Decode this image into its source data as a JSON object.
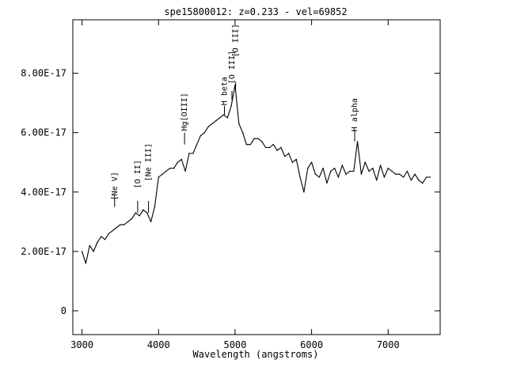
{
  "chart_data": {
    "type": "line",
    "title": "spe15800012: z=0.233 - vel=69852",
    "xlabel": "Wavelength (angstroms)",
    "ylabel": "",
    "xlim": [
      2880,
      7680
    ],
    "ylim": [
      -8e-18,
      9.8e-17
    ],
    "x_ticks": [
      3000,
      4000,
      5000,
      6000,
      7000
    ],
    "x_tick_labels": [
      "3000",
      "4000",
      "5000",
      "6000",
      "7000"
    ],
    "y_ticks": [
      0,
      2e-17,
      4e-17,
      6e-17,
      8e-17
    ],
    "y_tick_labels": [
      "0",
      "2.00E-17",
      "4.00E-17",
      "6.00E-17",
      "8.00E-17"
    ],
    "grid": false,
    "series": [
      {
        "x": [
          3000,
          3050,
          3100,
          3150,
          3200,
          3250,
          3300,
          3350,
          3400,
          3450,
          3500,
          3550,
          3600,
          3650,
          3700,
          3750,
          3800,
          3850,
          3900,
          3950,
          4000,
          4050,
          4100,
          4150,
          4200,
          4250,
          4300,
          4350,
          4400,
          4450,
          4500,
          4550,
          4600,
          4650,
          4700,
          4750,
          4800,
          4850,
          4900,
          4950,
          5000,
          5050,
          5100,
          5150,
          5200,
          5250,
          5300,
          5350,
          5400,
          5450,
          5500,
          5550,
          5600,
          5650,
          5700,
          5750,
          5800,
          5850,
          5900,
          5950,
          6000,
          6050,
          6100,
          6150,
          6200,
          6250,
          6300,
          6350,
          6400,
          6450,
          6500,
          6550,
          6600,
          6650,
          6700,
          6750,
          6800,
          6850,
          6900,
          6950,
          7000,
          7050,
          7100,
          7150,
          7200,
          7250,
          7300,
          7350,
          7400,
          7450,
          7500,
          7550
        ],
        "y": [
          2e-17,
          1.6e-17,
          2.2e-17,
          2e-17,
          2.3e-17,
          2.5e-17,
          2.4e-17,
          2.6e-17,
          2.7e-17,
          2.8e-17,
          2.9e-17,
          2.9e-17,
          3e-17,
          3.1e-17,
          3.3e-17,
          3.2e-17,
          3.4e-17,
          3.3e-17,
          3e-17,
          3.5e-17,
          4.5e-17,
          4.6e-17,
          4.7e-17,
          4.8e-17,
          4.8e-17,
          5e-17,
          5.1e-17,
          4.7e-17,
          5.3e-17,
          5.3e-17,
          5.6e-17,
          5.9e-17,
          6e-17,
          6.2e-17,
          6.3e-17,
          6.4e-17,
          6.5e-17,
          6.6e-17,
          6.5e-17,
          6.9e-17,
          7.6e-17,
          6.3e-17,
          6e-17,
          5.6e-17,
          5.6e-17,
          5.8e-17,
          5.8e-17,
          5.7e-17,
          5.5e-17,
          5.5e-17,
          5.6e-17,
          5.4e-17,
          5.5e-17,
          5.2e-17,
          5.3e-17,
          5e-17,
          5.1e-17,
          4.5e-17,
          4e-17,
          4.8e-17,
          5e-17,
          4.6e-17,
          4.5e-17,
          4.8e-17,
          4.3e-17,
          4.7e-17,
          4.8e-17,
          4.5e-17,
          4.9e-17,
          4.6e-17,
          4.7e-17,
          4.7e-17,
          5.7e-17,
          4.6e-17,
          5e-17,
          4.7e-17,
          4.8e-17,
          4.4e-17,
          4.9e-17,
          4.5e-17,
          4.8e-17,
          4.7e-17,
          4.6e-17,
          4.6e-17,
          4.5e-17,
          4.7e-17,
          4.4e-17,
          4.6e-17,
          4.4e-17,
          4.3e-17,
          4.5e-17,
          4.5e-17
        ]
      }
    ],
    "annotations": [
      {
        "label": "[Ne V]",
        "x": 3426,
        "line_from": 3.9e-17,
        "line_to": 3.5e-17,
        "text_y": 4.2e-17
      },
      {
        "label": "[O II]",
        "x": 3727,
        "line_from": 3.7e-17,
        "line_to": 3.3e-17,
        "text_y": 4.6e-17
      },
      {
        "label": "[Ne III]",
        "x": 3869,
        "line_from": 3.7e-17,
        "line_to": 3.3e-17,
        "text_y": 5e-17
      },
      {
        "label": "Hg[OIII]",
        "x": 4340,
        "line_from": 6e-17,
        "line_to": 5.6e-17,
        "text_y": 6.7e-17
      },
      {
        "label": "H beta",
        "x": 4861,
        "line_from": 6.9e-17,
        "line_to": 6.6e-17,
        "text_y": 7.4e-17
      },
      {
        "label": "[O III]",
        "x": 4959,
        "line_from": 7.4e-17,
        "line_to": 7.1e-17,
        "text_y": 8.2e-17
      },
      {
        "label": "[O III]",
        "x": 5007,
        "line_from": 7.7e-17,
        "line_to": 7.4e-17,
        "text_y": 9.1e-17
      },
      {
        "label": "H alpha",
        "x": 6563,
        "line_from": 6.1e-17,
        "line_to": 5.7e-17,
        "text_y": 6.6e-17
      }
    ]
  }
}
